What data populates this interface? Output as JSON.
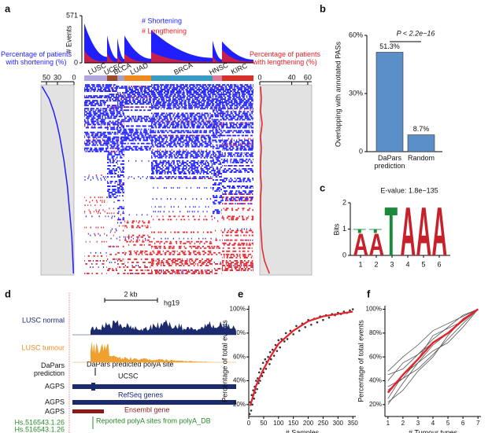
{
  "chart_data": [
    {
      "type": "heatmap",
      "panel": "a",
      "ylabel": "# Events",
      "ylim": [
        0,
        571
      ],
      "yticks": [
        0,
        571
      ],
      "series": [
        {
          "name": "# Shortening",
          "color": "#1f1fff",
          "values": [
            480,
            330,
            300,
            330,
            400,
            270,
            260
          ]
        },
        {
          "name": "# Lengthening",
          "color": "#e8202a",
          "values": [
            150,
            120,
            100,
            110,
            130,
            90,
            160
          ]
        }
      ],
      "categories": [
        "LUSC",
        "UCEC",
        "BLCA",
        "LUAD",
        "BRCA",
        "HNSC",
        "KIRC"
      ],
      "category_colors": [
        "#b3a6dc",
        "#9c4a2a",
        "#a9a0c8",
        "#f08a1c",
        "#3a9bc4",
        "#e07a9a",
        "#d6302a"
      ],
      "category_sizes": [
        29,
        13,
        9,
        34,
        78,
        12,
        40
      ],
      "left": {
        "label": "Percentage of patients with shortening (%)",
        "xlim": [
          60,
          0
        ],
        "xticks": [
          50,
          30,
          0
        ],
        "color": "#1f1fff",
        "values": [
          58,
          45,
          37,
          31,
          26,
          22,
          18,
          15,
          12,
          10,
          8,
          6,
          4,
          3,
          2,
          1
        ]
      },
      "right": {
        "label": "Percentage of patients with lengthening (%)",
        "xlim": [
          0,
          65
        ],
        "xticks": [
          0,
          40,
          60
        ],
        "color": "#e8202a",
        "values": [
          1,
          2,
          1,
          3,
          1,
          2,
          1,
          1,
          2,
          1,
          1,
          1,
          2,
          3,
          6,
          12
        ]
      }
    },
    {
      "type": "bar",
      "panel": "b",
      "ylabel": "Overlapping with annotated PASs",
      "categories": [
        "DaPars prediction",
        "Random"
      ],
      "values": [
        51.3,
        8.7
      ],
      "value_labels": [
        "51.3%",
        "8.7%"
      ],
      "color": "#5b8fc7",
      "ylim": [
        0,
        60
      ],
      "yticks": [
        0,
        {
          "value": 30,
          "label": "30%"
        },
        {
          "value": 60,
          "label": "60%"
        }
      ],
      "annotation": "P < 2.2e−16"
    },
    {
      "type": "logo",
      "panel": "c",
      "title": "E-value: 1.8e−135",
      "ylabel": "Bits",
      "ylim": [
        0,
        2
      ],
      "yticks": [
        0,
        1,
        2
      ],
      "x": [
        1,
        2,
        3,
        4,
        5,
        6
      ],
      "series": [
        {
          "name": "A",
          "color": "#c8202a",
          "values": [
            0.85,
            0.85,
            0,
            1.9,
            1.9,
            1.9
          ]
        },
        {
          "name": "T",
          "color": "#1a8a3a",
          "values": [
            0.15,
            0.15,
            1.9,
            0,
            0,
            0
          ]
        }
      ]
    },
    {
      "type": "scatter",
      "panel": "e",
      "xlabel": "# Samples",
      "ylabel": "Percentage of total events",
      "xlim": [
        0,
        360
      ],
      "xticks": [
        0,
        50,
        100,
        150,
        200,
        250,
        300,
        350
      ],
      "ylim": [
        10,
        103
      ],
      "yticks": [
        {
          "value": 20,
          "label": "20%"
        },
        {
          "value": 40,
          "label": "40%"
        },
        {
          "value": 60,
          "label": "60%"
        },
        {
          "value": 80,
          "label": "80%"
        },
        {
          "value": 100,
          "label": "100%"
        }
      ],
      "series": [
        {
          "kind": "points",
          "color": "#333333",
          "x": [
            3,
            5,
            8,
            10,
            12,
            15,
            18,
            20,
            22,
            25,
            28,
            30,
            33,
            35,
            38,
            40,
            45,
            48,
            50,
            55,
            58,
            60,
            65,
            70,
            72,
            75,
            80,
            85,
            90,
            95,
            100,
            105,
            110,
            120,
            125,
            130,
            140,
            150,
            160,
            170,
            180,
            190,
            200,
            210,
            220,
            230,
            240,
            250,
            260,
            270,
            280,
            290,
            300,
            310,
            320,
            330,
            340,
            350
          ],
          "values": [
            12,
            22,
            15,
            28,
            20,
            32,
            25,
            35,
            30,
            40,
            33,
            42,
            38,
            47,
            40,
            50,
            44,
            55,
            47,
            58,
            50,
            56,
            60,
            54,
            64,
            58,
            66,
            61,
            70,
            65,
            74,
            68,
            75,
            73,
            80,
            75,
            82,
            79,
            86,
            82,
            88,
            85,
            91,
            87,
            92,
            89,
            94,
            91,
            95,
            93,
            96,
            95,
            97,
            96,
            98,
            97,
            99,
            100
          ]
        },
        {
          "kind": "line",
          "color": "#e8202a",
          "x": [
            5,
            25,
            50,
            75,
            100,
            150,
            200,
            250,
            300,
            350
          ],
          "values": [
            19,
            36,
            50,
            61,
            71,
            82,
            90,
            94,
            96,
            98
          ]
        }
      ]
    },
    {
      "type": "line",
      "panel": "f",
      "xlabel": "# Tumour types",
      "ylabel": "Percentage of total events",
      "xlim": [
        0.8,
        7.2
      ],
      "xticks": [
        1,
        2,
        3,
        4,
        5,
        6,
        7
      ],
      "x": [
        1,
        2,
        3,
        4,
        5,
        6,
        7
      ],
      "ylim": [
        10,
        103
      ],
      "yticks": [
        {
          "value": 20,
          "label": "20%"
        },
        {
          "value": 40,
          "label": "40%"
        },
        {
          "value": 60,
          "label": "60%"
        },
        {
          "value": 80,
          "label": "80%"
        },
        {
          "value": 100,
          "label": "100%"
        }
      ],
      "series": [
        {
          "color": "#555555",
          "values": [
            20,
            38,
            55,
            70,
            80,
            90,
            100
          ]
        },
        {
          "color": "#555555",
          "values": [
            32,
            42,
            50,
            62,
            75,
            88,
            100
          ]
        },
        {
          "color": "#555555",
          "values": [
            45,
            50,
            62,
            72,
            80,
            92,
            100
          ]
        },
        {
          "color": "#555555",
          "values": [
            22,
            32,
            48,
            60,
            78,
            92,
            100
          ]
        },
        {
          "color": "#555555",
          "values": [
            40,
            55,
            62,
            75,
            85,
            95,
            100
          ]
        },
        {
          "color": "#555555",
          "values": [
            48,
            60,
            70,
            82,
            88,
            94,
            100
          ]
        },
        {
          "color": "#555555",
          "values": [
            25,
            45,
            55,
            65,
            72,
            85,
            100
          ]
        },
        {
          "color": "#555555",
          "values": [
            35,
            42,
            58,
            78,
            84,
            90,
            100
          ]
        },
        {
          "color": "#e8202a",
          "values": [
            30,
            45,
            58,
            72,
            80,
            91,
            100
          ]
        }
      ]
    }
  ],
  "genome_browser": {
    "panel": "d",
    "scale": "2 kb",
    "assembly": "hg19",
    "normal": "LUSC normal",
    "tumour": "LUSC tumour",
    "prediction": "DaPars prediction",
    "prediction_site": "DaPars predicted polyA site",
    "ucsc": "UCSC",
    "genes": [
      "AGPS",
      "AGPS",
      "AGPS"
    ],
    "refseq": "RefSeq genes",
    "ensembl": "Ensembl gene",
    "polya_ids": [
      "Hs.516543.1.26",
      "Hs.516543.1.26"
    ],
    "polya_db": "Reported polyA sites from polyA_DB"
  }
}
